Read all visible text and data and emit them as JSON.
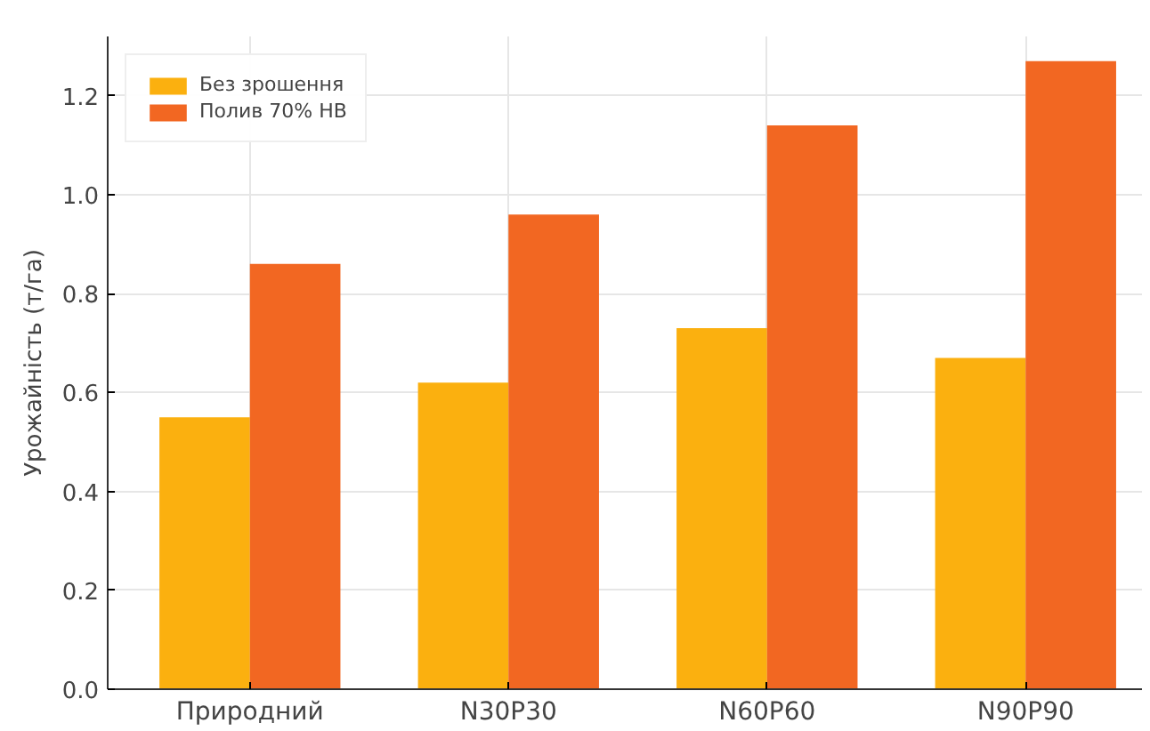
{
  "chart_data": {
    "type": "bar",
    "ylabel": "Урожайність (т/га)",
    "categories": [
      "Природний",
      "N30P30",
      "N60P60",
      "N90P90"
    ],
    "series": [
      {
        "name": "Без зрошення",
        "color": "#fbb00f",
        "values": [
          0.55,
          0.62,
          0.73,
          0.67
        ]
      },
      {
        "name": "Полив 70% НВ",
        "color": "#f26722",
        "values": [
          0.86,
          0.96,
          1.14,
          1.27
        ]
      }
    ],
    "ylim": [
      0,
      1.32
    ],
    "yticks": [
      {
        "value": 0,
        "label": "0.0"
      },
      0.2,
      0.4,
      0.6,
      0.8,
      {
        "value": 1,
        "label": "1.0"
      },
      1.2
    ],
    "grid": true,
    "legend": "top left"
  }
}
